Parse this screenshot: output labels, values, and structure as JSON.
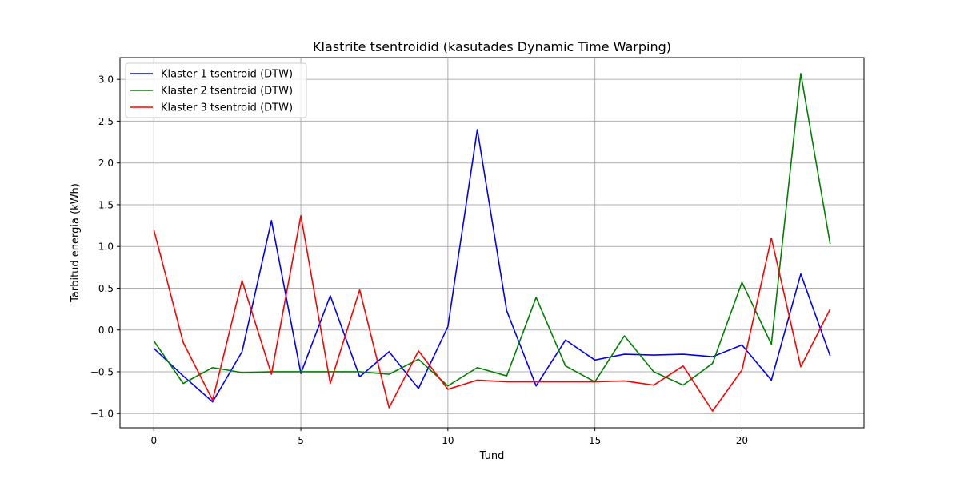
{
  "chart_data": {
    "type": "line",
    "title": "Klastrite tsentroidid (kasutades Dynamic Time Warping)",
    "xlabel": "Tund",
    "ylabel": "Tarbitud energia (kWh)",
    "xlim": [
      -1.15,
      24.15
    ],
    "ylim": [
      -1.17,
      3.26
    ],
    "xticks": [
      0,
      5,
      10,
      15,
      20
    ],
    "yticks": [
      -1.0,
      -0.5,
      0.0,
      0.5,
      1.0,
      1.5,
      2.0,
      2.5,
      3.0
    ],
    "grid": true,
    "legend_position": "upper left",
    "x": [
      0,
      1,
      2,
      3,
      4,
      5,
      6,
      7,
      8,
      9,
      10,
      11,
      12,
      13,
      14,
      15,
      16,
      17,
      18,
      19,
      20,
      21,
      22,
      23
    ],
    "series": [
      {
        "name": "Klaster 1 tsentroid (DTW)",
        "color": "#0000ff",
        "values": [
          -0.22,
          -0.55,
          -0.86,
          -0.26,
          1.31,
          -0.52,
          0.41,
          -0.56,
          -0.26,
          -0.7,
          0.04,
          2.4,
          0.23,
          -0.67,
          -0.12,
          -0.36,
          -0.29,
          -0.3,
          -0.29,
          -0.32,
          -0.18,
          -0.6,
          0.67,
          -0.31
        ]
      },
      {
        "name": "Klaster 2 tsentroid (DTW)",
        "color": "#008000",
        "values": [
          -0.13,
          -0.64,
          -0.45,
          -0.51,
          -0.5,
          -0.5,
          -0.5,
          -0.5,
          -0.53,
          -0.35,
          -0.67,
          -0.45,
          -0.55,
          0.39,
          -0.43,
          -0.62,
          -0.07,
          -0.5,
          -0.66,
          -0.4,
          0.57,
          -0.17,
          3.07,
          1.03
        ]
      },
      {
        "name": "Klaster 3 tsentroid (DTW)",
        "color": "#ff0000",
        "values": [
          1.2,
          -0.15,
          -0.84,
          0.59,
          -0.53,
          1.37,
          -0.64,
          0.48,
          -0.93,
          -0.25,
          -0.71,
          -0.6,
          -0.62,
          -0.62,
          -0.62,
          -0.62,
          -0.61,
          -0.66,
          -0.43,
          -0.97,
          -0.48,
          1.1,
          -0.44,
          0.25
        ]
      }
    ]
  }
}
